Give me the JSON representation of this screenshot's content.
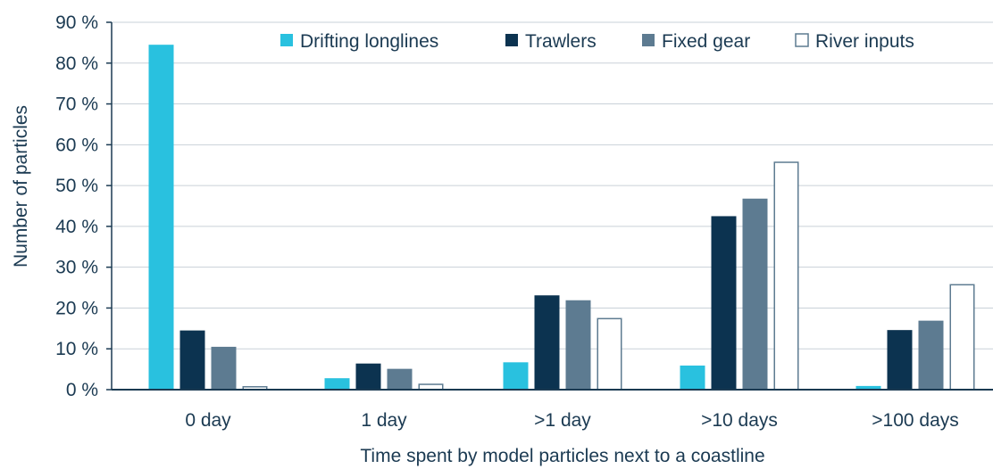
{
  "chart_data": {
    "type": "bar",
    "title": "",
    "xlabel": "Time spent by model particles next to a coastline",
    "ylabel": "Number of particles",
    "categories": [
      "0 day",
      "1 day",
      ">1 day",
      ">10 days",
      ">100 days"
    ],
    "series": [
      {
        "name": "Drifting longlines",
        "color": "#29c1df",
        "values": [
          84.5,
          2.8,
          6.7,
          5.9,
          0.9
        ]
      },
      {
        "name": "Trawlers",
        "color": "#0c3350",
        "values": [
          14.5,
          6.4,
          23.1,
          42.5,
          14.6
        ]
      },
      {
        "name": "Fixed gear",
        "color": "#5d7b91",
        "values": [
          10.5,
          5.1,
          21.9,
          46.8,
          16.9
        ]
      },
      {
        "name": "River inputs",
        "color": "#ffffff",
        "values": [
          0.7,
          1.3,
          17.4,
          55.7,
          25.7
        ]
      }
    ],
    "ylim": [
      0,
      90
    ],
    "yticks": [
      "0 %",
      "10 %",
      "20 %",
      "30 %",
      "40 %",
      "50 %",
      "60 %",
      "70 %",
      "80 %",
      "90 %"
    ],
    "grid": true,
    "legend_position": "top"
  }
}
